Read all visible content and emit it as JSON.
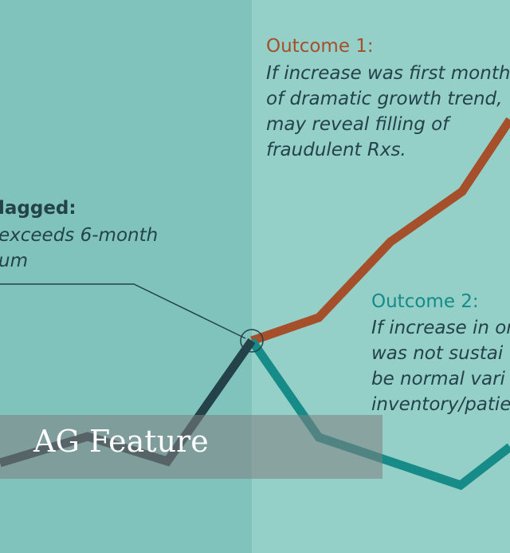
{
  "colors": {
    "left_bg": "#7fc3bc",
    "right_bg": "#94cfc8",
    "outcome1": "#a54f2b",
    "outcome2": "#168b88",
    "baseline": "#24424a",
    "text": "#24424a"
  },
  "flagged": {
    "heading": "lagged:",
    "lines": [
      "exceeds 6-month",
      "um"
    ]
  },
  "outcome1": {
    "heading": "Outcome 1:",
    "lines": [
      "If increase was first month",
      "of dramatic growth trend,",
      "may reveal filling of",
      "fraudulent Rxs."
    ]
  },
  "outcome2": {
    "heading": "Outcome 2:",
    "lines": [
      "If increase in or",
      "was not sustai",
      "be normal vari",
      "inventory/patie"
    ]
  },
  "banner": {
    "title": "AG Feature"
  }
}
